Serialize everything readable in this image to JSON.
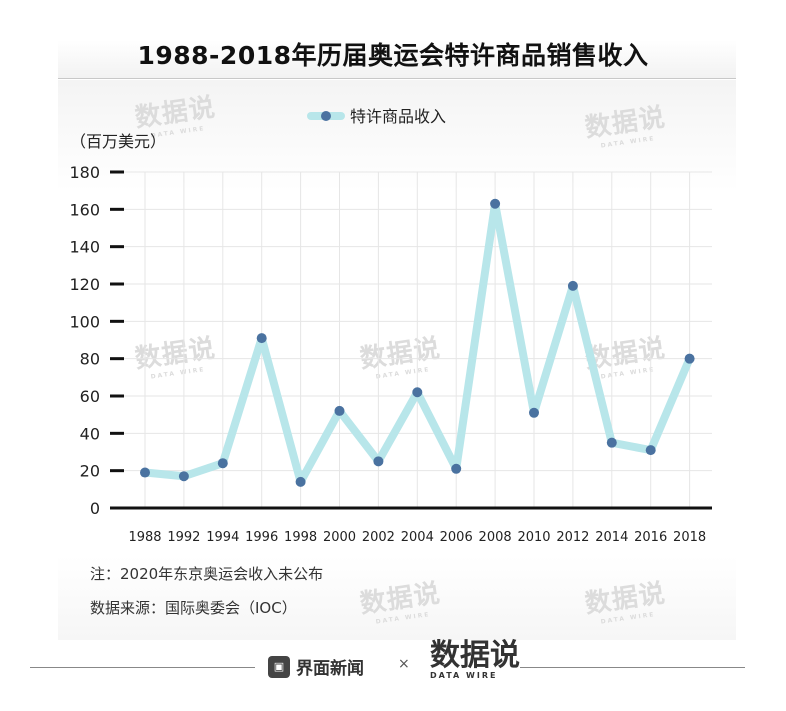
{
  "title": "1988-2018年历届奥运会特许商品销售收入",
  "unit_label": "（百万美元）",
  "notes": {
    "note": "注：2020年东京奥运会收入未公布",
    "source": "数据来源：国际奥委会（IOC）"
  },
  "watermark": {
    "text": "数据说",
    "sub": "DATA WIRE"
  },
  "footer": {
    "logo_text": "界面新闻",
    "logo_icon": "box-icon",
    "separator": "×",
    "brand_text": "数据说",
    "brand_sub": "DATA WIRE"
  },
  "colors": {
    "line": "#b8e6ea",
    "marker": "#4a72a0",
    "axis": "#111111",
    "grid": "#e6e6e6"
  },
  "chart_data": {
    "type": "line",
    "title": "1988-2018年历届奥运会特许商品销售收入",
    "xlabel": "",
    "ylabel": "（百万美元）",
    "categories": [
      "1988",
      "1992",
      "1994",
      "1996",
      "1998",
      "2000",
      "2002",
      "2004",
      "2006",
      "2008",
      "2010",
      "2012",
      "2014",
      "2016",
      "2018"
    ],
    "series": [
      {
        "name": "特许商品收入",
        "values": [
          19,
          17,
          24,
          91,
          14,
          52,
          25,
          62,
          21,
          163,
          51,
          119,
          35,
          31,
          80
        ]
      }
    ],
    "ylim": [
      0,
      180
    ],
    "yticks": [
      0,
      20,
      40,
      60,
      80,
      100,
      120,
      140,
      160,
      180
    ],
    "grid": true,
    "legend_position": "top-center"
  }
}
